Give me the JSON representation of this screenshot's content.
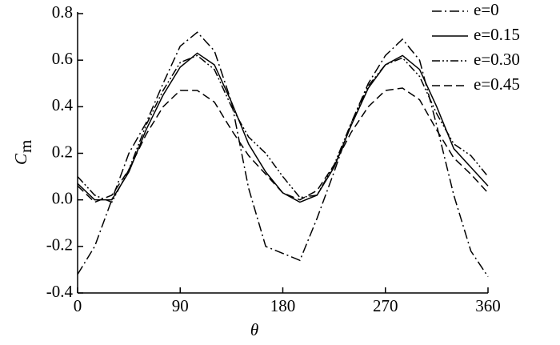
{
  "chart_data": {
    "type": "line",
    "xlabel": "θ",
    "ylabel": "C",
    "ylabel_sub": "m",
    "x": [
      0,
      15,
      30,
      45,
      60,
      75,
      90,
      105,
      120,
      135,
      150,
      165,
      180,
      195,
      210,
      225,
      240,
      255,
      270,
      285,
      300,
      315,
      330,
      345,
      360
    ],
    "series": [
      {
        "name": "e=0",
        "color": "#000000",
        "dash": "dashdot",
        "values": [
          -0.32,
          -0.2,
          0.0,
          0.2,
          0.33,
          0.5,
          0.66,
          0.72,
          0.64,
          0.42,
          0.05,
          -0.2,
          -0.23,
          -0.26,
          -0.08,
          0.12,
          0.33,
          0.5,
          0.62,
          0.69,
          0.6,
          0.32,
          0.02,
          -0.22,
          -0.33
        ]
      },
      {
        "name": "e=0.15",
        "color": "#000000",
        "dash": "solid",
        "values": [
          0.07,
          0.0,
          0.0,
          0.12,
          0.3,
          0.45,
          0.57,
          0.63,
          0.58,
          0.42,
          0.24,
          0.12,
          0.03,
          -0.01,
          0.02,
          0.14,
          0.32,
          0.48,
          0.58,
          0.62,
          0.56,
          0.4,
          0.22,
          0.14,
          0.06
        ]
      },
      {
        "name": "e=0.30",
        "color": "#000000",
        "dash": "dashdotdot",
        "values": [
          0.1,
          0.02,
          -0.01,
          0.13,
          0.32,
          0.47,
          0.59,
          0.62,
          0.56,
          0.4,
          0.27,
          0.2,
          0.1,
          0.01,
          0.02,
          0.15,
          0.33,
          0.49,
          0.58,
          0.61,
          0.53,
          0.37,
          0.24,
          0.19,
          0.1
        ]
      },
      {
        "name": "e=0.45",
        "color": "#000000",
        "dash": "dashed",
        "values": [
          0.06,
          -0.01,
          0.02,
          0.13,
          0.28,
          0.4,
          0.47,
          0.47,
          0.42,
          0.3,
          0.19,
          0.11,
          0.03,
          0.0,
          0.04,
          0.15,
          0.29,
          0.4,
          0.47,
          0.48,
          0.43,
          0.3,
          0.18,
          0.11,
          0.03
        ]
      }
    ],
    "xlim": [
      0,
      360
    ],
    "xticks": [
      0,
      90,
      180,
      270,
      360
    ],
    "ylim": [
      -0.4,
      0.8
    ],
    "yticks": [
      -0.4,
      -0.2,
      {
        "value": 0,
        "label": "0.0"
      },
      0.2,
      0.4,
      0.6,
      0.8
    ],
    "grid": false,
    "legend": "upper right"
  }
}
